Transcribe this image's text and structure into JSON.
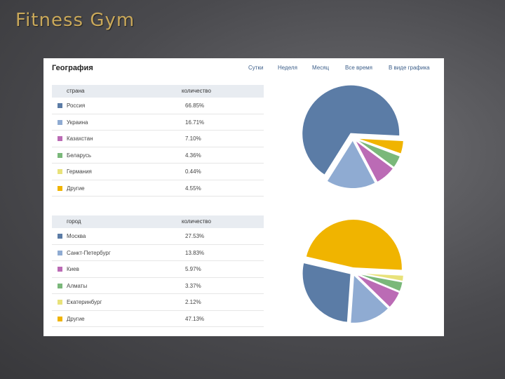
{
  "slide_title": "Fitness Gym",
  "panel": {
    "title": "География",
    "tabs": [
      {
        "label": "Сутки",
        "active": false
      },
      {
        "label": "Неделя",
        "active": false
      },
      {
        "label": "Месяц",
        "active": false
      },
      {
        "label": "Все время",
        "active": true
      },
      {
        "label": "В виде графика",
        "active": false
      }
    ]
  },
  "chart_data": [
    {
      "type": "pie",
      "columns": [
        "страна",
        "количество"
      ],
      "categories": [
        "Россия",
        "Украина",
        "Казахстан",
        "Беларусь",
        "Германия",
        "Другие"
      ],
      "labels": [
        "66.85%",
        "16.71%",
        "7.10%",
        "4.36%",
        "0.44%",
        "4.55%"
      ],
      "values": [
        66.85,
        16.71,
        7.1,
        4.36,
        0.44,
        4.55
      ],
      "colors": [
        "#5b7ca6",
        "#8fabd2",
        "#bb6bb5",
        "#7ab87a",
        "#e8e27a",
        "#f0b400"
      ]
    },
    {
      "type": "pie",
      "columns": [
        "город",
        "количество"
      ],
      "categories": [
        "Москва",
        "Санкт-Петербург",
        "Киев",
        "Алматы",
        "Екатеринбург",
        "Другие"
      ],
      "labels": [
        "27.53%",
        "13.83%",
        "5.97%",
        "3.37%",
        "2.12%",
        "47.13%"
      ],
      "values": [
        27.53,
        13.83,
        5.97,
        3.37,
        2.12,
        47.13
      ],
      "colors": [
        "#5b7ca6",
        "#8fabd2",
        "#bb6bb5",
        "#7ab87a",
        "#e8e27a",
        "#f0b400"
      ]
    }
  ]
}
